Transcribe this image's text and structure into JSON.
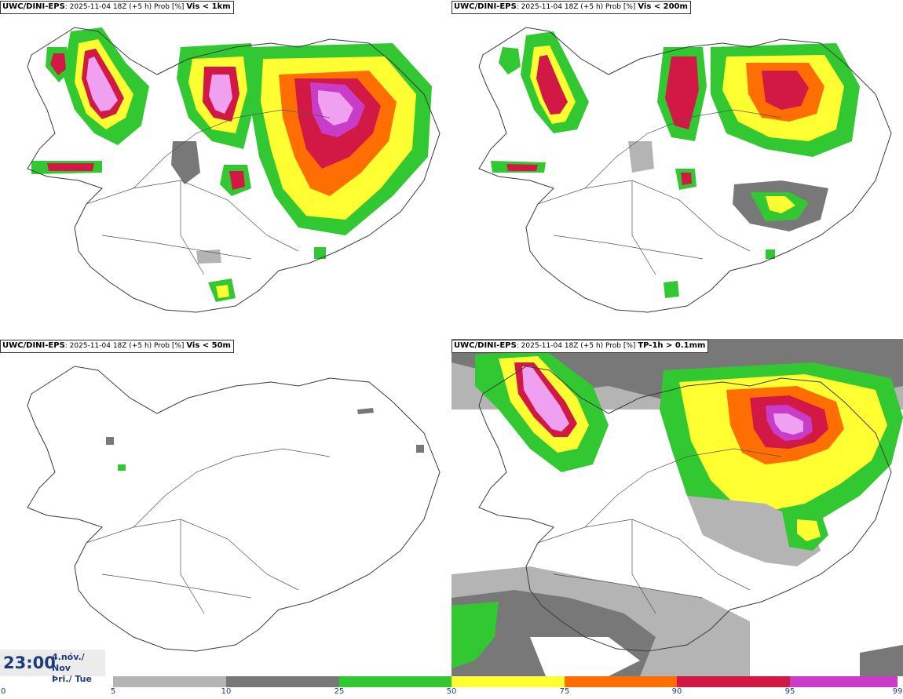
{
  "panels": [
    {
      "model": "UWC/DINI-EPS",
      "run_info": ": 2025-11-04 18Z (+5 h) Prob [%]",
      "threshold": "Vis < 1km"
    },
    {
      "model": "UWC/DINI-EPS",
      "run_info": ": 2025-11-04 18Z (+5 h) Prob [%]",
      "threshold": "Vis < 200m"
    },
    {
      "model": "UWC/DINI-EPS",
      "run_info": ": 2025-11-04 18Z (+5 h) Prob [%]",
      "threshold": "Vis < 50m"
    },
    {
      "model": "UWC/DINI-EPS",
      "run_info": ": 2025-11-04 18Z (+5 h) Prob [%]",
      "threshold": "TP-1h > 0.1mm"
    }
  ],
  "time": {
    "clock": "23:00",
    "date_line1": "4.nóv./ Nov",
    "date_line2": "Þri./ Tue"
  },
  "colorbar": {
    "tick_labels": [
      "0",
      "5",
      "10",
      "25",
      "50",
      "75",
      "90",
      "95",
      "99"
    ],
    "colors": [
      "#ffffff",
      "#b4b4b4",
      "#787878",
      "#32c832",
      "#ffff32",
      "#ff6e00",
      "#d21946",
      "#c83cc8",
      "#f0a0f0"
    ]
  },
  "map_colors": {
    "coast": "#3a3a3a",
    "roads": "#555555"
  }
}
